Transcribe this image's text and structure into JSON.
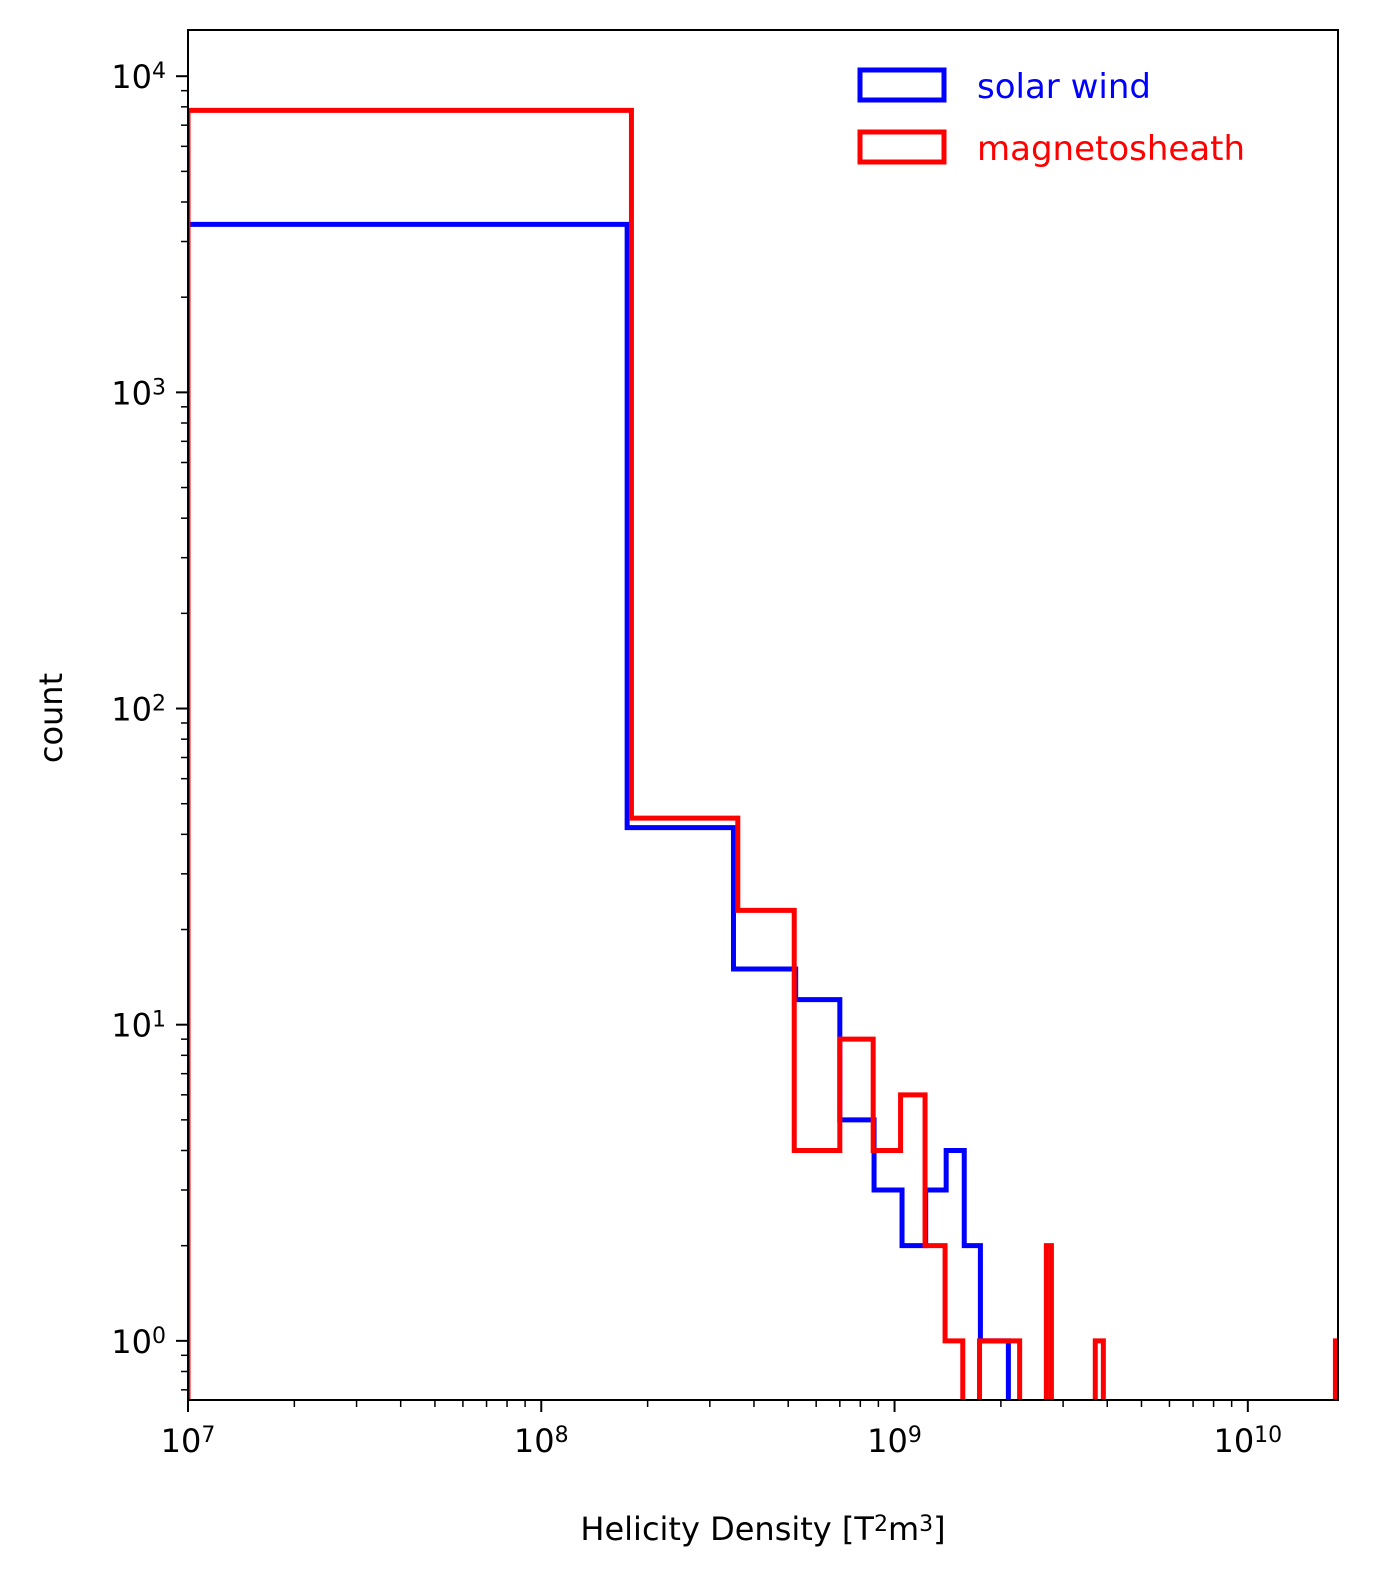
{
  "chart_data": {
    "type": "histogram",
    "xscale": "log",
    "yscale": "log",
    "xlabel": "Helicity Density [T²m³]",
    "ylabel": "count",
    "xlim": [
      10000000,
      18000000000
    ],
    "ylim": [
      0.65,
      14000
    ],
    "x_ticks": [
      {
        "value": 10000000,
        "base": "10",
        "exp": "7"
      },
      {
        "value": 100000000,
        "base": "10",
        "exp": "8"
      },
      {
        "value": 1000000000,
        "base": "10",
        "exp": "9"
      },
      {
        "value": 10000000000,
        "base": "10",
        "exp": "10"
      }
    ],
    "y_ticks": [
      {
        "value": 1,
        "base": "10",
        "exp": "0"
      },
      {
        "value": 10,
        "base": "10",
        "exp": "1"
      },
      {
        "value": 100,
        "base": "10",
        "exp": "2"
      },
      {
        "value": 1000,
        "base": "10",
        "exp": "3"
      },
      {
        "value": 10000,
        "base": "10",
        "exp": "4"
      }
    ],
    "grid": false,
    "legend": "top-right",
    "series": [
      {
        "name": "solar wind",
        "color": "#0000ff",
        "bins": [
          {
            "x0": 10000000,
            "x1": 175000000,
            "count": 3400
          },
          {
            "x0": 175000000,
            "x1": 350000000,
            "count": 42
          },
          {
            "x0": 350000000,
            "x1": 525000000,
            "count": 15
          },
          {
            "x0": 525000000,
            "x1": 700000000,
            "count": 12
          },
          {
            "x0": 700000000,
            "x1": 875000000,
            "count": 5
          },
          {
            "x0": 875000000,
            "x1": 1050000000,
            "count": 3
          },
          {
            "x0": 1050000000,
            "x1": 1225000000,
            "count": 2
          },
          {
            "x0": 1225000000,
            "x1": 1400000000,
            "count": 3
          },
          {
            "x0": 1400000000,
            "x1": 1575000000,
            "count": 4
          },
          {
            "x0": 1575000000,
            "x1": 1750000000,
            "count": 2
          },
          {
            "x0": 1750000000,
            "x1": 1925000000,
            "count": 1
          },
          {
            "x0": 1925000000,
            "x1": 2100000000,
            "count": 1
          }
        ]
      },
      {
        "name": "magnetosheath",
        "color": "#ff0000",
        "bins": [
          {
            "x0": 10000000,
            "x1": 180000000,
            "count": 7800
          },
          {
            "x0": 180000000,
            "x1": 360000000,
            "count": 45
          },
          {
            "x0": 360000000,
            "x1": 520000000,
            "count": 23
          },
          {
            "x0": 520000000,
            "x1": 700000000,
            "count": 4
          },
          {
            "x0": 700000000,
            "x1": 870000000,
            "count": 9
          },
          {
            "x0": 870000000,
            "x1": 1040000000,
            "count": 4
          },
          {
            "x0": 1040000000,
            "x1": 1220000000,
            "count": 6
          },
          {
            "x0": 1220000000,
            "x1": 1390000000,
            "count": 2
          },
          {
            "x0": 1390000000,
            "x1": 1560000000,
            "count": 1
          },
          {
            "x0": 1560000000,
            "x1": 1740000000,
            "count": 0
          },
          {
            "x0": 1740000000,
            "x1": 1910000000,
            "count": 1
          },
          {
            "x0": 1910000000,
            "x1": 2260000000,
            "count": 1
          },
          {
            "x0": 2260000000,
            "x1": 2690000000,
            "count": 0
          },
          {
            "x0": 2690000000,
            "x1": 2780000000,
            "count": 2
          },
          {
            "x0": 2780000000,
            "x1": 3700000000,
            "count": 0
          },
          {
            "x0": 3700000000,
            "x1": 3900000000,
            "count": 1
          },
          {
            "x0": 3900000000,
            "x1": 17700000000,
            "count": 0
          },
          {
            "x0": 17700000000,
            "x1": 18000000000,
            "count": 1
          }
        ]
      }
    ]
  }
}
